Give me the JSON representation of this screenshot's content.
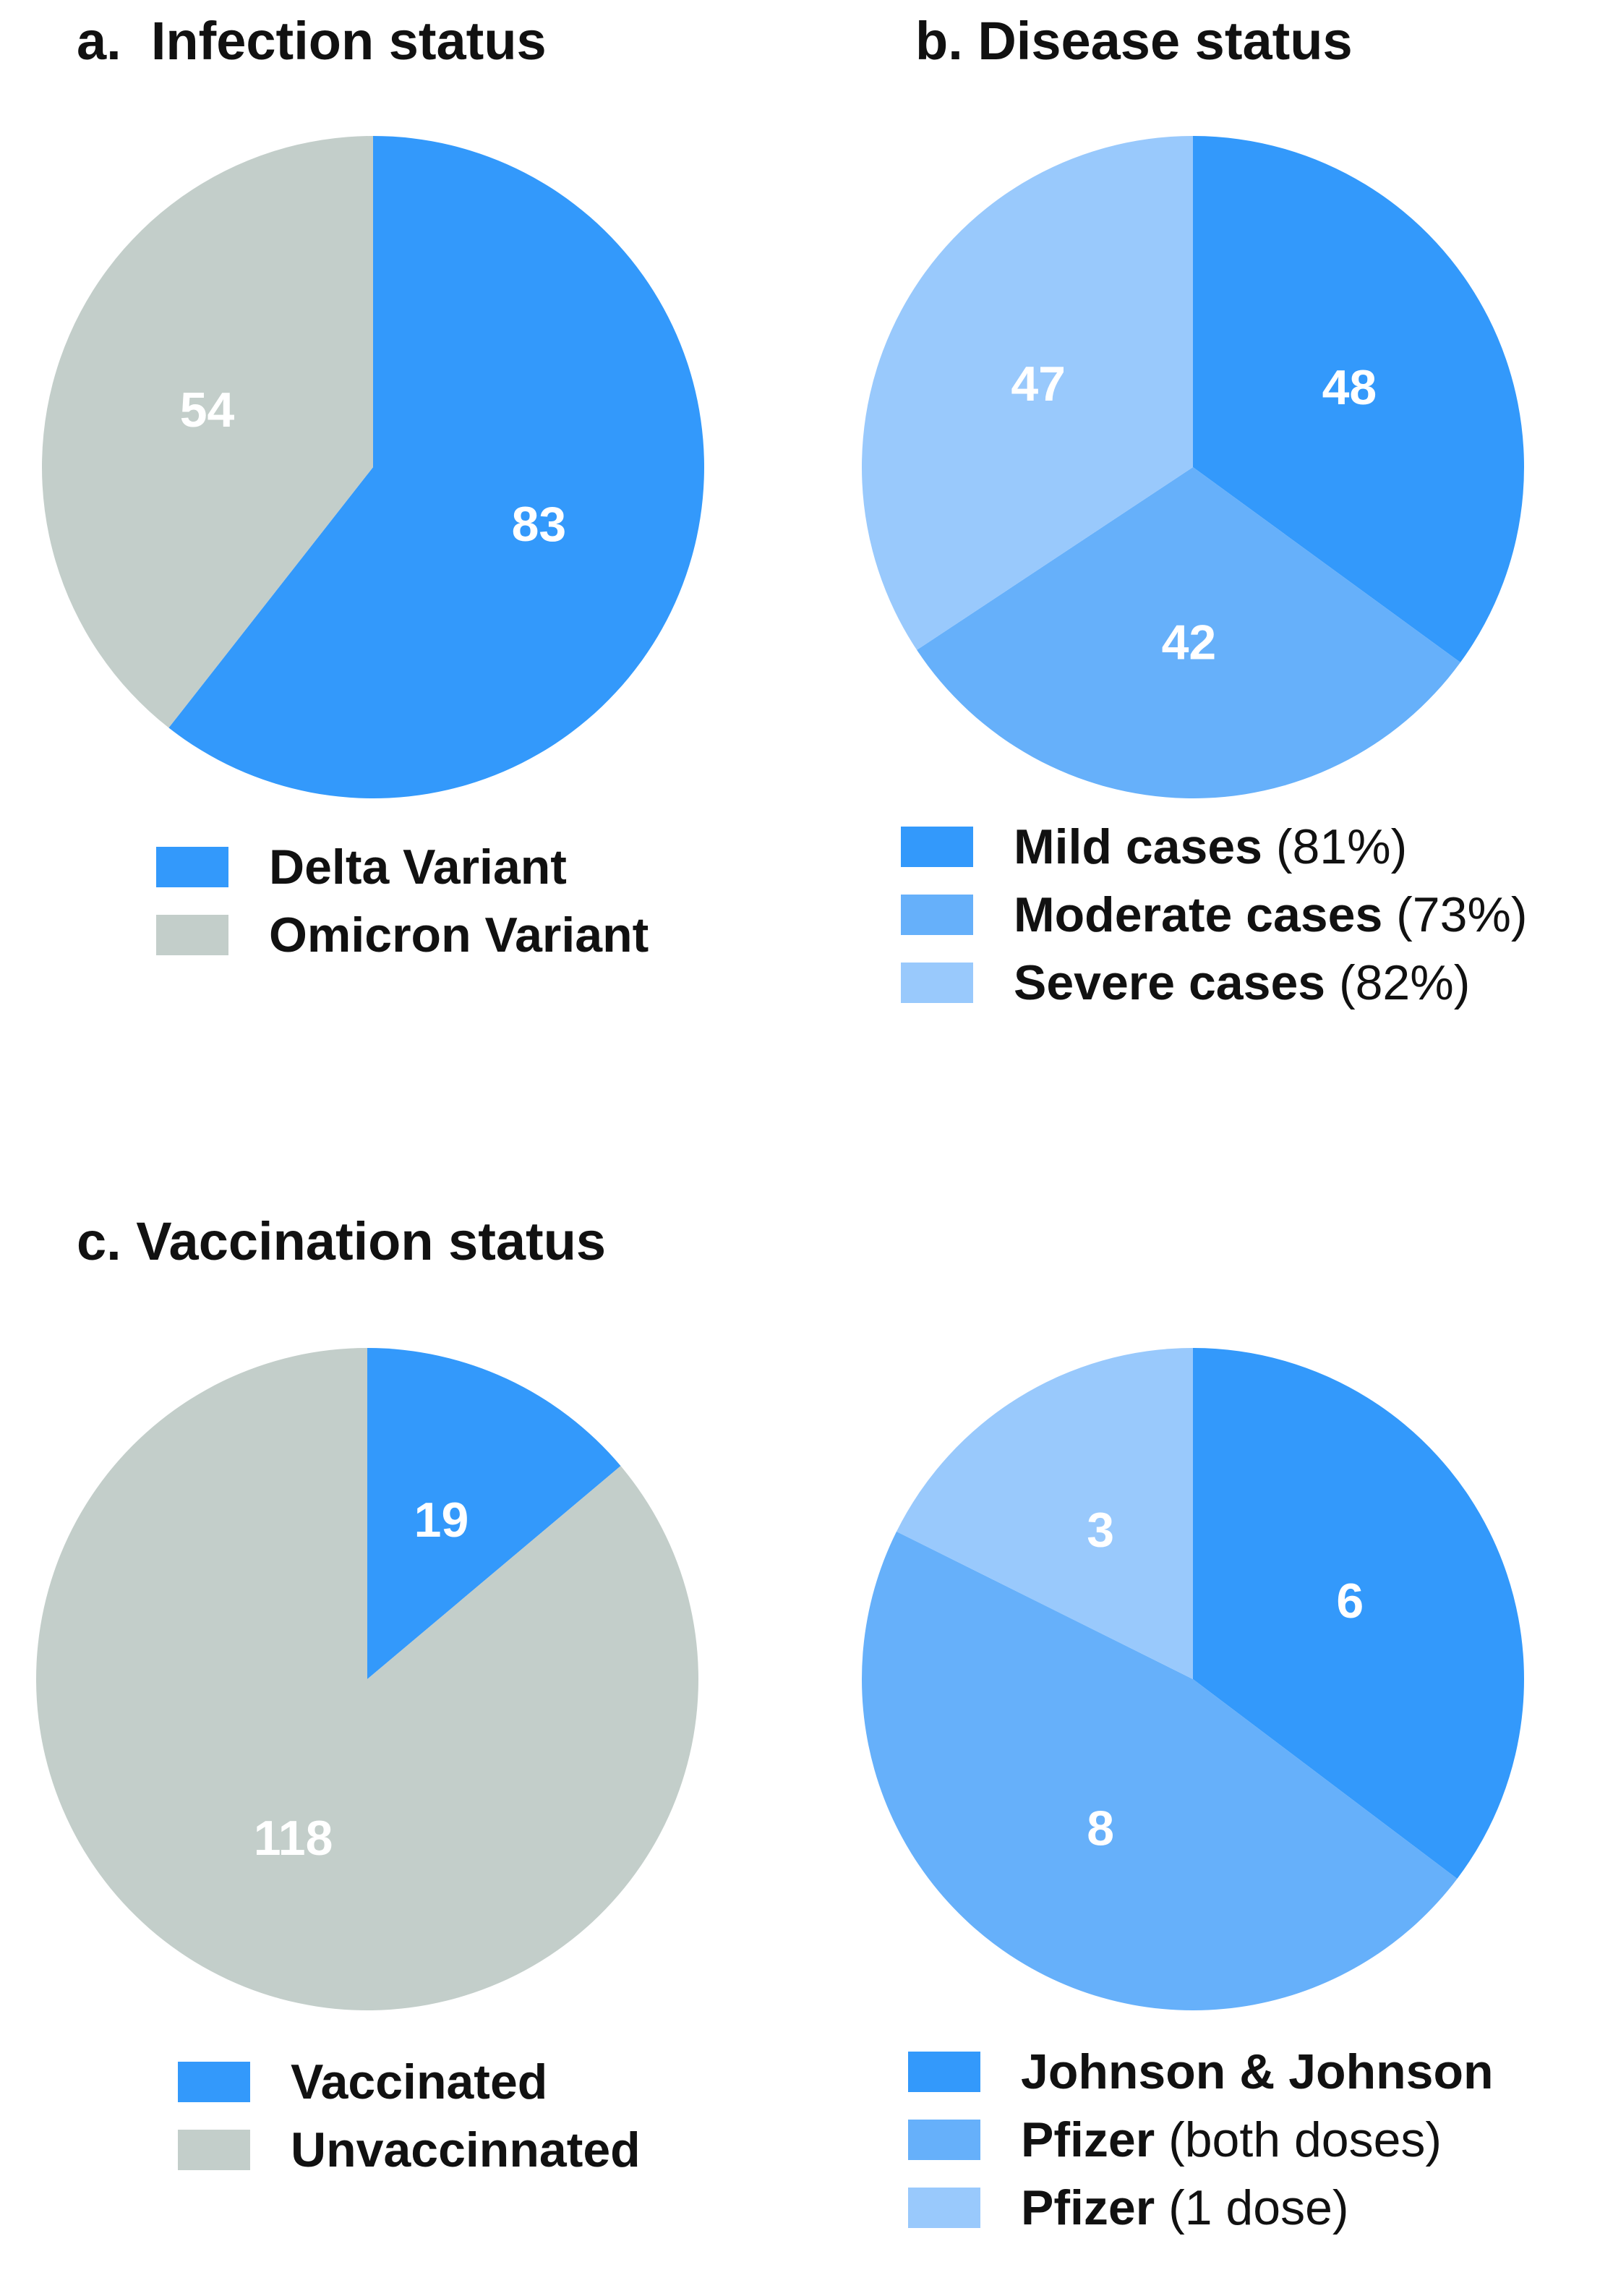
{
  "chart_data": [
    {
      "id": "a",
      "type": "pie",
      "title_letter": "a.",
      "title": "Infection status",
      "categories": [
        "Delta Variant",
        "Omicron Variant"
      ],
      "values": [
        83,
        54
      ],
      "labels": [
        "83",
        "54"
      ],
      "colors": [
        "#3399fb",
        "#c3ceca"
      ],
      "legend": [
        {
          "label": "Delta Variant",
          "note": ""
        },
        {
          "label": "Omicron Variant",
          "note": ""
        }
      ]
    },
    {
      "id": "b",
      "type": "pie",
      "title_letter": "b.",
      "title": "Disease status",
      "categories": [
        "Mild cases",
        "Moderate cases",
        "Severe cases"
      ],
      "values": [
        48,
        42,
        47
      ],
      "labels": [
        "48",
        "42",
        "47"
      ],
      "colors": [
        "#3399fb",
        "#66b0fa",
        "#99c9fc"
      ],
      "legend": [
        {
          "label": "Mild cases",
          "note": " (81%)"
        },
        {
          "label": "Moderate cases",
          "note": " (73%)"
        },
        {
          "label": "Severe cases",
          "note": " (82%)"
        }
      ]
    },
    {
      "id": "c",
      "type": "pie",
      "title_letter": "c.",
      "title": "Vaccination status",
      "categories": [
        "Vaccinated",
        "Unvaccinnated"
      ],
      "values": [
        19,
        118
      ],
      "labels": [
        "19",
        "118"
      ],
      "colors": [
        "#3399fb",
        "#c3ceca"
      ],
      "legend": [
        {
          "label": "Vaccinated",
          "note": ""
        },
        {
          "label": "Unvaccinnated",
          "note": ""
        }
      ]
    },
    {
      "id": "d",
      "type": "pie",
      "title": "",
      "categories": [
        "Johnson & Johnson",
        "Pfizer (both doses)",
        "Pfizer (1 dose)"
      ],
      "values": [
        6,
        8,
        3
      ],
      "labels": [
        "6",
        "8",
        "3"
      ],
      "colors": [
        "#3399fb",
        "#66b0fa",
        "#99c9fc"
      ],
      "legend": [
        {
          "label": "Johnson & Johnson",
          "note": ""
        },
        {
          "label": "Pfizer",
          "note": " (both doses)"
        },
        {
          "label": "Pfizer",
          "note": " (1 dose)"
        }
      ]
    }
  ]
}
